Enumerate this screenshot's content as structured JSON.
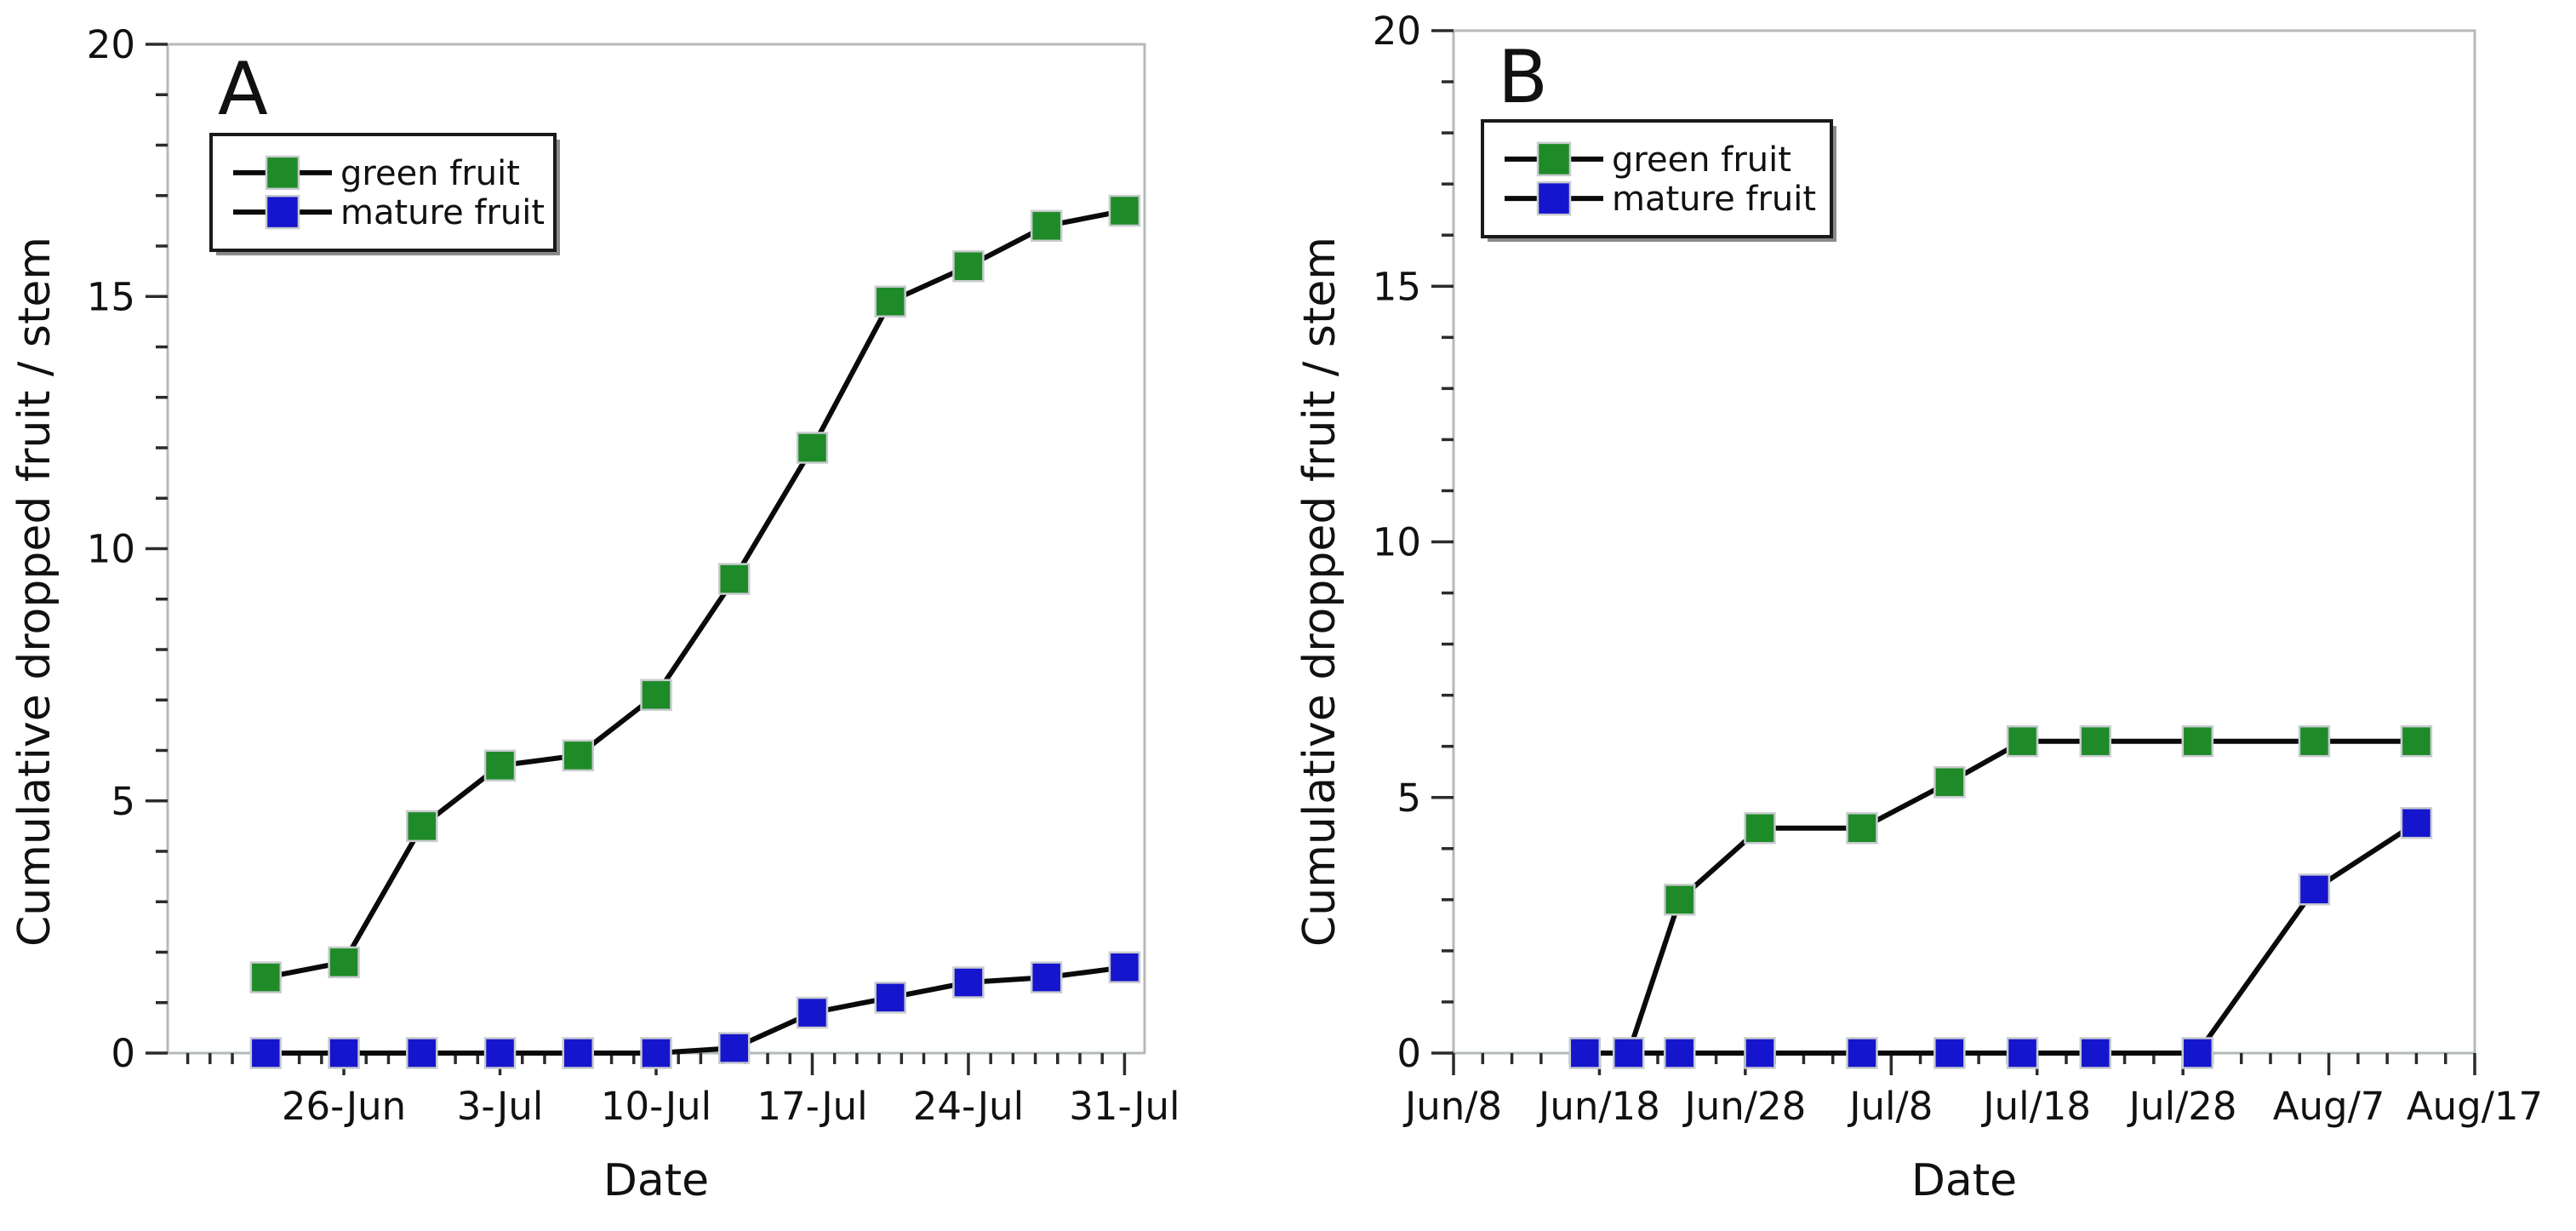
{
  "figure": {
    "background": "#ffffff",
    "colors": {
      "green_fill": "#1e8b28",
      "blue_fill": "#1515cd",
      "marker_edge": "#c8ccce",
      "data_line": "#0a0a0a",
      "frame": "#b4bab8",
      "tick": "#2b2b2b",
      "text": "#111111",
      "legend_border": "#1a1a1a",
      "legend_shadow": "#8a8a8a"
    }
  },
  "chart_data": [
    {
      "type": "line",
      "panel_label": "A",
      "xlabel": "Date",
      "ylabel": "Cumulative dropped fruit / stem",
      "ylim": [
        0,
        20
      ],
      "y_major_ticks": [
        0,
        5,
        10,
        15,
        20
      ],
      "y_minor_step": 1,
      "grid": false,
      "legend_position": "upper-left",
      "x_domain_days": [
        18.1,
        61.9
      ],
      "x_minor_step_days": 1,
      "x_major_ticks": [
        {
          "day": 26,
          "label": "26-Jun"
        },
        {
          "day": 33,
          "label": "3-Jul"
        },
        {
          "day": 40,
          "label": "10-Jul"
        },
        {
          "day": 47,
          "label": "17-Jul"
        },
        {
          "day": 54,
          "label": "24-Jul"
        },
        {
          "day": 61,
          "label": "31-Jul"
        }
      ],
      "series": [
        {
          "name": "green fruit",
          "color_key": "green_fill",
          "x_days": [
            22.5,
            26,
            29.5,
            33,
            36.5,
            40,
            43.5,
            47,
            50.5,
            54,
            57.5,
            61
          ],
          "dates": [
            "22-Jun",
            "26-Jun",
            "30-Jun",
            "3-Jul",
            "7-Jul",
            "10-Jul",
            "14-Jul",
            "17-Jul",
            "21-Jul",
            "24-Jul",
            "28-Jul",
            "31-Jul"
          ],
          "values": [
            1.5,
            1.8,
            4.5,
            5.7,
            5.9,
            7.1,
            9.4,
            12.0,
            14.9,
            15.6,
            16.4,
            16.7
          ]
        },
        {
          "name": "mature fruit",
          "color_key": "blue_fill",
          "x_days": [
            22.5,
            26,
            29.5,
            33,
            36.5,
            40,
            43.5,
            47,
            50.5,
            54,
            57.5,
            61
          ],
          "dates": [
            "22-Jun",
            "26-Jun",
            "30-Jun",
            "3-Jul",
            "7-Jul",
            "10-Jul",
            "14-Jul",
            "17-Jul",
            "21-Jul",
            "24-Jul",
            "28-Jul",
            "31-Jul"
          ],
          "values": [
            0,
            0,
            0,
            0,
            0,
            0,
            0.1,
            0.8,
            1.1,
            1.4,
            1.5,
            1.7
          ]
        }
      ]
    },
    {
      "type": "line",
      "panel_label": "B",
      "xlabel": "Date",
      "ylabel": "Cumulative dropped fruit / stem",
      "ylim": [
        0,
        20
      ],
      "y_major_ticks": [
        0,
        5,
        10,
        15,
        20
      ],
      "y_minor_step": 1,
      "grid": false,
      "legend_position": "upper-left",
      "x_domain_days": [
        8,
        78
      ],
      "x_minor_step_days": 2,
      "x_major_ticks": [
        {
          "day": 8,
          "label": "Jun/8"
        },
        {
          "day": 18,
          "label": "Jun/18"
        },
        {
          "day": 28,
          "label": "Jun/28"
        },
        {
          "day": 38,
          "label": "Jul/8"
        },
        {
          "day": 48,
          "label": "Jul/18"
        },
        {
          "day": 58,
          "label": "Jul/28"
        },
        {
          "day": 68,
          "label": "Aug/7"
        },
        {
          "day": 78,
          "label": "Aug/17"
        }
      ],
      "series": [
        {
          "name": "green fruit",
          "color_key": "green_fill",
          "x_days": [
            17,
            20,
            23.5,
            29,
            36,
            42,
            47,
            52,
            59,
            67,
            74
          ],
          "dates": [
            "Jun/17",
            "Jun/20",
            "Jun/23",
            "Jun/29",
            "Jul/6",
            "Jul/12",
            "Jul/17",
            "Jul/22",
            "Jul/29",
            "Aug/6",
            "Aug/13"
          ],
          "values": [
            0,
            0,
            3.0,
            4.4,
            4.4,
            5.3,
            6.1,
            6.1,
            6.1,
            6.1,
            6.1
          ]
        },
        {
          "name": "mature fruit",
          "color_key": "blue_fill",
          "x_days": [
            17,
            20,
            23.5,
            29,
            36,
            42,
            47,
            52,
            59,
            67,
            74
          ],
          "dates": [
            "Jun/17",
            "Jun/20",
            "Jun/23",
            "Jun/29",
            "Jul/6",
            "Jul/12",
            "Jul/17",
            "Jul/22",
            "Jul/29",
            "Aug/6",
            "Aug/13"
          ],
          "values": [
            0,
            0,
            0,
            0,
            0,
            0,
            0,
            0,
            0,
            3.2,
            4.5
          ]
        }
      ]
    }
  ]
}
